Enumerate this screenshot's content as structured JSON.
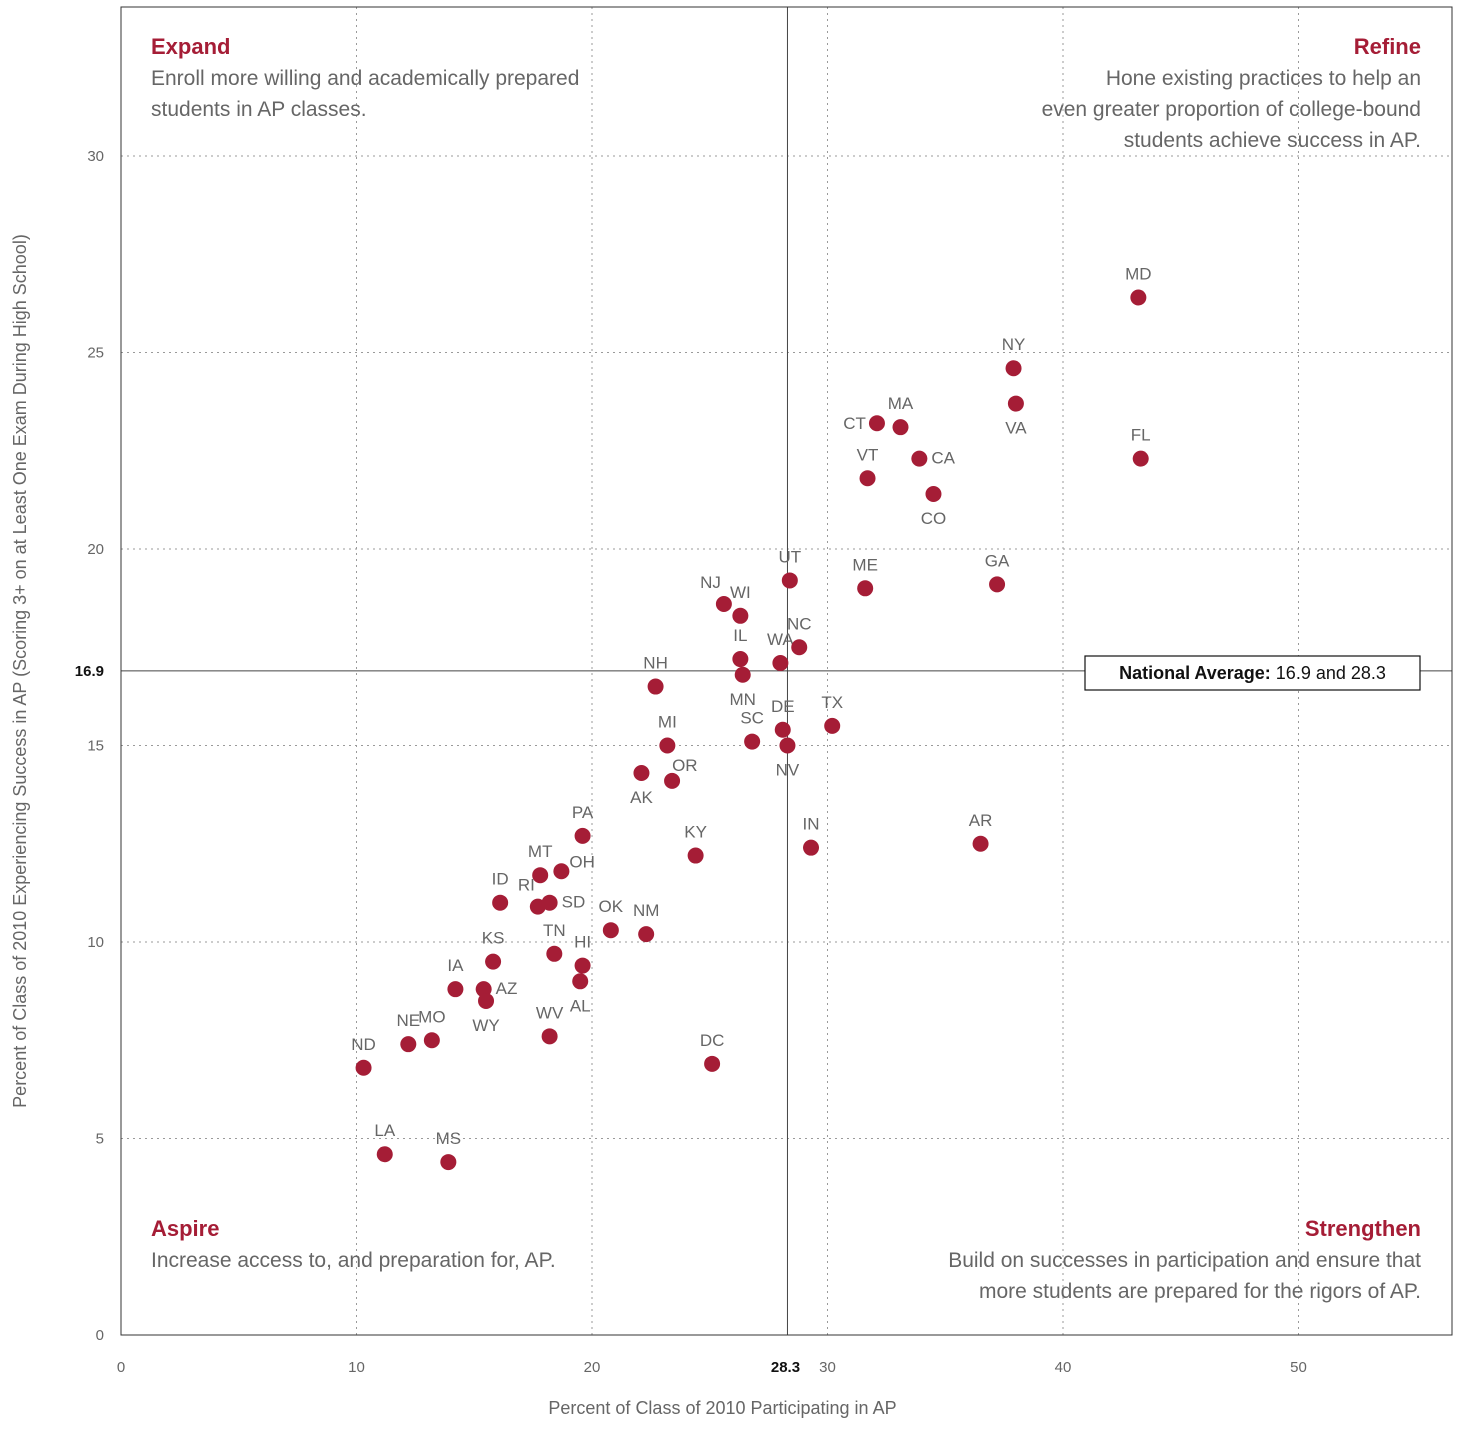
{
  "chart_data": {
    "type": "scatter",
    "xlabel": "Percent of Class of 2010 Participating in AP",
    "ylabel": "Percent of Class of 2010 Experiencing Success in AP (Scoring 3+ on at Least One Exam During High School)",
    "xlim": [
      0,
      56.5
    ],
    "ylim": [
      0,
      33.5
    ],
    "x_ticks": [
      "0",
      "10",
      "20",
      "30",
      "40",
      "50"
    ],
    "y_ticks": [
      "0",
      "5",
      "10",
      "15",
      "20",
      "25",
      "30"
    ],
    "grid": "dotted",
    "reference_lines": {
      "x": 28.3,
      "x_label": "28.3",
      "y": 16.9,
      "y_label": "16.9",
      "callout_bold": "National Average:",
      "callout_rest": " 16.9 and 28.3"
    },
    "point_color": "#a51d36",
    "quadrants": [
      {
        "id": "expand",
        "corner": "top-left",
        "title": "Expand",
        "lines": [
          "Enroll more willing and academically prepared",
          "students in AP classes."
        ]
      },
      {
        "id": "refine",
        "corner": "top-right",
        "title": "Refine",
        "lines": [
          "Hone existing practices to help an",
          "even greater proportion of college-bound",
          "students achieve success in AP."
        ]
      },
      {
        "id": "aspire",
        "corner": "bottom-left",
        "title": "Aspire",
        "lines": [
          "Increase access to, and preparation for, AP."
        ]
      },
      {
        "id": "strengthen",
        "corner": "bottom-right",
        "title": "Strengthen",
        "lines": [
          "Build on successes in participation and ensure that",
          "more students are prepared for the rigors of AP."
        ]
      }
    ],
    "points": [
      {
        "label": "MD",
        "x": 43.2,
        "y": 26.4,
        "pos": "above"
      },
      {
        "label": "NY",
        "x": 37.9,
        "y": 24.6,
        "pos": "above"
      },
      {
        "label": "VA",
        "x": 38.0,
        "y": 23.7,
        "pos": "below"
      },
      {
        "label": "FL",
        "x": 43.3,
        "y": 22.3,
        "pos": "above"
      },
      {
        "label": "CT",
        "x": 32.1,
        "y": 23.2,
        "pos": "left"
      },
      {
        "label": "MA",
        "x": 33.1,
        "y": 23.1,
        "pos": "above"
      },
      {
        "label": "CA",
        "x": 33.9,
        "y": 22.3,
        "pos": "right"
      },
      {
        "label": "VT",
        "x": 31.7,
        "y": 21.8,
        "pos": "above"
      },
      {
        "label": "CO",
        "x": 34.5,
        "y": 21.4,
        "pos": "below"
      },
      {
        "label": "UT",
        "x": 28.4,
        "y": 19.2,
        "pos": "above"
      },
      {
        "label": "ME",
        "x": 31.6,
        "y": 19.0,
        "pos": "above"
      },
      {
        "label": "GA",
        "x": 37.2,
        "y": 19.1,
        "pos": "above"
      },
      {
        "label": "NJ",
        "x": 25.6,
        "y": 18.6,
        "pos": "left-above"
      },
      {
        "label": "WI",
        "x": 26.3,
        "y": 18.3,
        "pos": "above"
      },
      {
        "label": "IL",
        "x": 26.3,
        "y": 17.2,
        "pos": "above"
      },
      {
        "label": "MN",
        "x": 26.4,
        "y": 16.8,
        "pos": "below"
      },
      {
        "label": "WA",
        "x": 28.0,
        "y": 17.1,
        "pos": "above"
      },
      {
        "label": "NC",
        "x": 28.8,
        "y": 17.5,
        "pos": "above"
      },
      {
        "label": "NH",
        "x": 22.7,
        "y": 16.5,
        "pos": "above"
      },
      {
        "label": "TX",
        "x": 30.2,
        "y": 15.5,
        "pos": "above"
      },
      {
        "label": "DE",
        "x": 28.1,
        "y": 15.4,
        "pos": "above"
      },
      {
        "label": "SC",
        "x": 26.8,
        "y": 15.1,
        "pos": "above"
      },
      {
        "label": "NV",
        "x": 28.3,
        "y": 15.0,
        "pos": "below"
      },
      {
        "label": "MI",
        "x": 23.2,
        "y": 15.0,
        "pos": "above"
      },
      {
        "label": "AK",
        "x": 22.1,
        "y": 14.3,
        "pos": "below"
      },
      {
        "label": "OR",
        "x": 23.4,
        "y": 14.1,
        "pos": "above-right"
      },
      {
        "label": "IN",
        "x": 29.3,
        "y": 12.4,
        "pos": "above"
      },
      {
        "label": "AR",
        "x": 36.5,
        "y": 12.5,
        "pos": "above"
      },
      {
        "label": "PA",
        "x": 19.6,
        "y": 12.7,
        "pos": "above"
      },
      {
        "label": "KY",
        "x": 24.4,
        "y": 12.2,
        "pos": "above"
      },
      {
        "label": "MT",
        "x": 17.8,
        "y": 11.7,
        "pos": "above"
      },
      {
        "label": "OH",
        "x": 18.7,
        "y": 11.8,
        "pos": "right-above"
      },
      {
        "label": "ID",
        "x": 16.1,
        "y": 11.0,
        "pos": "above"
      },
      {
        "label": "RI",
        "x": 17.7,
        "y": 10.9,
        "pos": "left-above"
      },
      {
        "label": "SD",
        "x": 18.2,
        "y": 11.0,
        "pos": "right"
      },
      {
        "label": "OK",
        "x": 20.8,
        "y": 10.3,
        "pos": "above"
      },
      {
        "label": "NM",
        "x": 22.3,
        "y": 10.2,
        "pos": "above"
      },
      {
        "label": "KS",
        "x": 15.8,
        "y": 9.5,
        "pos": "above"
      },
      {
        "label": "TN",
        "x": 18.4,
        "y": 9.7,
        "pos": "above"
      },
      {
        "label": "HI",
        "x": 19.6,
        "y": 9.4,
        "pos": "above"
      },
      {
        "label": "AL",
        "x": 19.5,
        "y": 9.0,
        "pos": "below"
      },
      {
        "label": "IA",
        "x": 14.2,
        "y": 8.8,
        "pos": "above"
      },
      {
        "label": "AZ",
        "x": 15.4,
        "y": 8.8,
        "pos": "right"
      },
      {
        "label": "WY",
        "x": 15.5,
        "y": 8.5,
        "pos": "below"
      },
      {
        "label": "WV",
        "x": 18.2,
        "y": 7.6,
        "pos": "above"
      },
      {
        "label": "NE",
        "x": 12.2,
        "y": 7.4,
        "pos": "above"
      },
      {
        "label": "MO",
        "x": 13.2,
        "y": 7.5,
        "pos": "above"
      },
      {
        "label": "ND",
        "x": 10.3,
        "y": 6.8,
        "pos": "above"
      },
      {
        "label": "DC",
        "x": 25.1,
        "y": 6.9,
        "pos": "above"
      },
      {
        "label": "LA",
        "x": 11.2,
        "y": 4.6,
        "pos": "above"
      },
      {
        "label": "MS",
        "x": 13.9,
        "y": 4.4,
        "pos": "above"
      }
    ]
  }
}
